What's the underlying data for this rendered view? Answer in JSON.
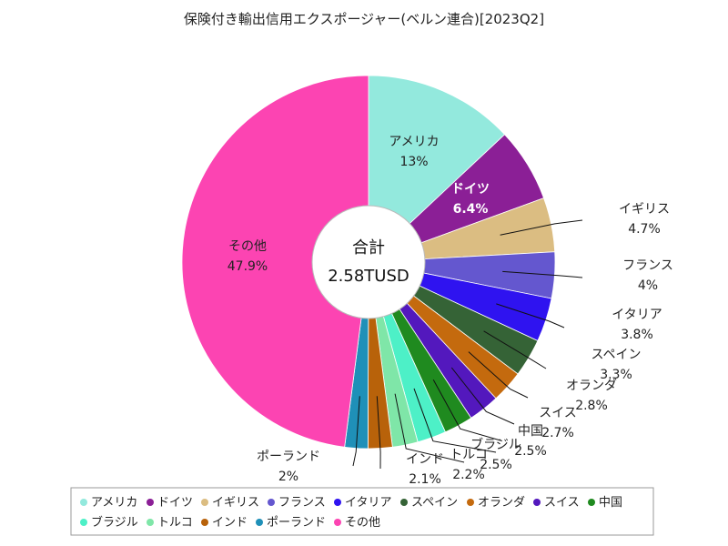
{
  "chart_data": {
    "type": "pie",
    "title": "保険付き輸出信用エクスポージャー(ベルン連合)[2023Q2]",
    "center_label": "合計",
    "center_value": "2.58TUSD",
    "slices": [
      {
        "name": "アメリカ",
        "value": 13,
        "label": "13%",
        "color": "#93e9dd"
      },
      {
        "name": "ドイツ",
        "value": 6.4,
        "label": "6.4%",
        "color": "#8b1f96"
      },
      {
        "name": "イギリス",
        "value": 4.7,
        "label": "4.7%",
        "color": "#dbbd82"
      },
      {
        "name": "フランス",
        "value": 4,
        "label": "4%",
        "color": "#6457cf"
      },
      {
        "name": "イタリア",
        "value": 3.8,
        "label": "3.8%",
        "color": "#2f13f0"
      },
      {
        "name": "スペイン",
        "value": 3.3,
        "label": "3.3%",
        "color": "#356336"
      },
      {
        "name": "オランダ",
        "value": 2.8,
        "label": "2.8%",
        "color": "#c46a0e"
      },
      {
        "name": "スイス",
        "value": 2.7,
        "label": "2.7%",
        "color": "#5318bd"
      },
      {
        "name": "中国",
        "value": 2.5,
        "label": "2.5%",
        "color": "#1f8a1f"
      },
      {
        "name": "ブラジル",
        "value": 2.5,
        "label": "2.5%",
        "color": "#4df0c7"
      },
      {
        "name": "トルコ",
        "value": 2.2,
        "label": "2.2%",
        "color": "#7fe6a8"
      },
      {
        "name": "インド",
        "value": 2.1,
        "label": "2.1%",
        "color": "#b8620a"
      },
      {
        "name": "ポーランド",
        "value": 2,
        "label": "2%",
        "color": "#1f90b8"
      },
      {
        "name": "その他",
        "value": 47.9,
        "label": "47.9%",
        "color": "#fc44b2"
      }
    ],
    "legend_position": "bottom"
  }
}
